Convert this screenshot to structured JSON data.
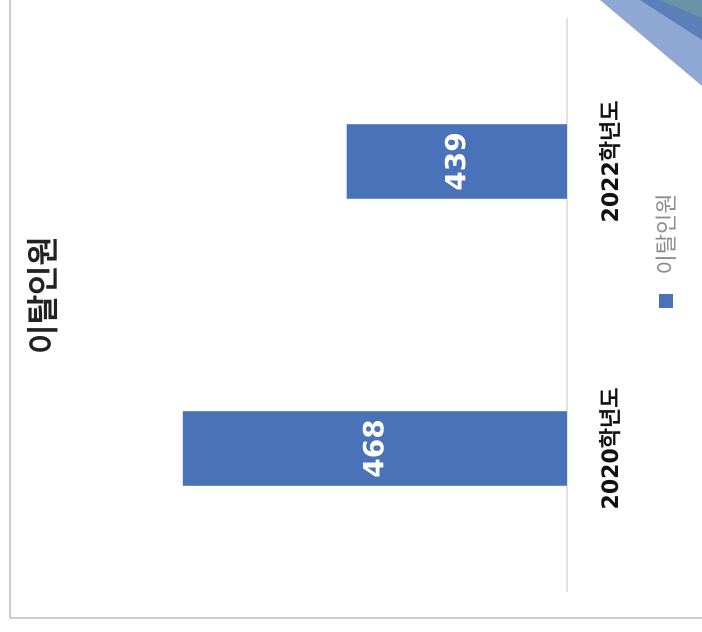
{
  "chart_data": {
    "type": "bar",
    "orientation": "rotated",
    "title": "이탈인원",
    "categories": [
      "2020학년도",
      "2022학년도"
    ],
    "series": [
      {
        "name": "이탈인원",
        "color": "#4a72b8",
        "values": [
          468,
          439
        ]
      }
    ],
    "ylim": [
      400,
      500
    ],
    "legend": "right"
  }
}
